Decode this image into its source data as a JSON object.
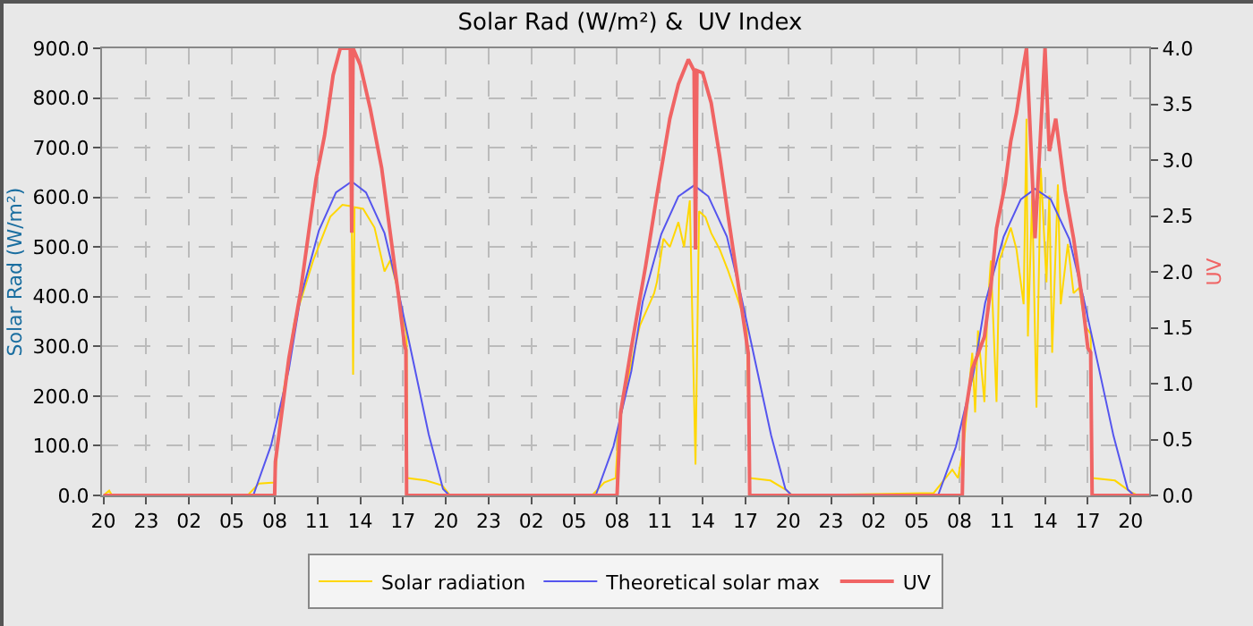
{
  "chart_data": {
    "type": "line",
    "title": "Solar Rad (W/m²) &  UV Index",
    "ylabel": "Solar Rad (W/m²)",
    "y2label": "UV",
    "xlim": [
      "--06-01T19:54",
      "--06-04T21:18"
    ],
    "xticks": [
      {
        "value": "--06-01T20:00",
        "label": "20"
      },
      {
        "value": "--06-01T23:00",
        "label": "23"
      },
      {
        "value": "--06-02T02:00",
        "label": "02"
      },
      {
        "value": "--06-02T05:00",
        "label": "05"
      },
      {
        "value": "--06-02T08:00",
        "label": "08"
      },
      {
        "value": "--06-02T11:00",
        "label": "11"
      },
      {
        "value": "--06-02T14:00",
        "label": "14"
      },
      {
        "value": "--06-02T17:00",
        "label": "17"
      },
      {
        "value": "--06-02T20:00",
        "label": "20"
      },
      {
        "value": "--06-02T23:00",
        "label": "23"
      },
      {
        "value": "--06-03T02:00",
        "label": "02"
      },
      {
        "value": "--06-03T05:00",
        "label": "05"
      },
      {
        "value": "--06-03T08:00",
        "label": "08"
      },
      {
        "value": "--06-03T11:00",
        "label": "11"
      },
      {
        "value": "--06-03T14:00",
        "label": "14"
      },
      {
        "value": "--06-03T17:00",
        "label": "17"
      },
      {
        "value": "--06-03T20:00",
        "label": "20"
      },
      {
        "value": "--06-03T23:00",
        "label": "23"
      },
      {
        "value": "--06-04T02:00",
        "label": "02"
      },
      {
        "value": "--06-04T05:00",
        "label": "05"
      },
      {
        "value": "--06-04T08:00",
        "label": "08"
      },
      {
        "value": "--06-04T11:00",
        "label": "11"
      },
      {
        "value": "--06-04T14:00",
        "label": "14"
      },
      {
        "value": "--06-04T17:00",
        "label": "17"
      },
      {
        "value": "--06-04T20:00",
        "label": "20"
      }
    ],
    "ylim": [
      0,
      900
    ],
    "yticks": [
      {
        "value": 0,
        "label": "0.0"
      },
      {
        "value": 100,
        "label": "100.0"
      },
      {
        "value": 200,
        "label": "200.0"
      },
      {
        "value": 300,
        "label": "300.0"
      },
      {
        "value": 400,
        "label": "400.0"
      },
      {
        "value": 500,
        "label": "500.0"
      },
      {
        "value": 600,
        "label": "600.0"
      },
      {
        "value": 700,
        "label": "700.0"
      },
      {
        "value": 800,
        "label": "800.0"
      },
      {
        "value": 900,
        "label": "900.0"
      }
    ],
    "y2lim": [
      0,
      4
    ],
    "y2ticks": [
      {
        "value": 0,
        "label": "0.0"
      },
      {
        "value": 0.5,
        "label": "0.5"
      },
      {
        "value": 1,
        "label": "1.0"
      },
      {
        "value": 1.5,
        "label": "1.5"
      },
      {
        "value": 2,
        "label": "2.0"
      },
      {
        "value": 2.5,
        "label": "2.5"
      },
      {
        "value": 3,
        "label": "3.0"
      },
      {
        "value": 3.5,
        "label": "3.5"
      },
      {
        "value": 4,
        "label": "4.0"
      }
    ],
    "grid": true,
    "legend": "bottom",
    "series": [
      {
        "name": "Solar radiation",
        "color": "#ffd700",
        "x": [
          "--06-01T20:00",
          "--06-01T20:24",
          "--06-01T20:36",
          "--06-01T20:48",
          "--06-02T06:06",
          "--06-02T06:54",
          "--06-02T08:00",
          "--06-02T08:24",
          "--06-02T09:24",
          "--06-02T10:42",
          "--06-02T11:54",
          "--06-02T12:45",
          "--06-02T13:24",
          "--06-02T13:30",
          "--06-02T13:36",
          "--06-02T14:12",
          "--06-02T15:00",
          "--06-02T15:42",
          "--06-02T16:06",
          "--06-02T16:42",
          "--06-02T17:06",
          "--06-02T17:15",
          "--06-02T17:18",
          "--06-02T18:36",
          "--06-02T19:45",
          "--06-02T20:18",
          "--06-03T06:15",
          "--06-03T07:06",
          "--06-03T07:54",
          "--06-03T08:06",
          "--06-03T08:45",
          "--06-03T09:36",
          "--06-03T10:36",
          "--06-03T10:48",
          "--06-03T11:15",
          "--06-03T11:42",
          "--06-03T12:18",
          "--06-03T12:42",
          "--06-03T13:06",
          "--06-03T13:30",
          "--06-03T13:45",
          "--06-03T14:12",
          "--06-03T14:36",
          "--06-03T15:12",
          "--06-03T15:48",
          "--06-03T16:42",
          "--06-03T17:06",
          "--06-03T17:18",
          "--06-03T18:45",
          "--06-03T19:48",
          "--06-03T20:18",
          "--06-04T06:12",
          "--06-04T07:30",
          "--06-04T07:54",
          "--06-04T08:18",
          "--06-04T08:54",
          "--06-04T09:06",
          "--06-04T09:18",
          "--06-04T09:45",
          "--06-04T09:57",
          "--06-04T10:12",
          "--06-04T10:36",
          "--06-04T10:48",
          "--06-04T11:12",
          "--06-04T11:36",
          "--06-04T12:00",
          "--06-04T12:30",
          "--06-04T12:42",
          "--06-04T12:48",
          "--06-04T13:06",
          "--06-04T13:24",
          "--06-04T13:42",
          "--06-04T14:06",
          "--06-04T14:18",
          "--06-04T14:30",
          "--06-04T14:54",
          "--06-04T15:06",
          "--06-04T15:36",
          "--06-04T16:00",
          "--06-04T16:24",
          "--06-04T16:48",
          "--06-04T17:12",
          "--06-04T17:18",
          "--06-04T18:54",
          "--06-04T20:00",
          "--06-04T20:30",
          "--06-04T21:18"
        ],
        "values": [
          0,
          10,
          0,
          0,
          0,
          24,
          26,
          168,
          352,
          473,
          561,
          585,
          582,
          243,
          580,
          577,
          539,
          451,
          473,
          407,
          342,
          325,
          35,
          30,
          20,
          0,
          0,
          26,
          35,
          134,
          233,
          342,
          407,
          430,
          517,
          500,
          550,
          500,
          594,
          62,
          572,
          560,
          528,
          495,
          451,
          375,
          332,
          35,
          30,
          12,
          0,
          5,
          52,
          35,
          101,
          287,
          167,
          332,
          188,
          364,
          473,
          188,
          473,
          506,
          539,
          495,
          385,
          758,
          320,
          604,
          177,
          659,
          429,
          604,
          287,
          626,
          385,
          506,
          407,
          418,
          342,
          325,
          35,
          30,
          7,
          0,
          0
        ]
      },
      {
        "name": "Theoretical solar max",
        "color": "#5555ee",
        "x": [
          "--06-01T20:00",
          "--06-02T06:30",
          "--06-02T07:45",
          "--06-02T09:00",
          "--06-02T09:48",
          "--06-02T11:06",
          "--06-02T12:18",
          "--06-02T13:24",
          "--06-02T14:24",
          "--06-02T15:42",
          "--06-02T16:42",
          "--06-02T17:45",
          "--06-02T18:48",
          "--06-02T19:48",
          "--06-02T20:15",
          "--06-03T06:30",
          "--06-03T07:45",
          "--06-03T09:00",
          "--06-03T09:48",
          "--06-03T11:06",
          "--06-03T12:18",
          "--06-03T13:24",
          "--06-03T14:24",
          "--06-03T15:42",
          "--06-03T16:42",
          "--06-03T17:45",
          "--06-03T18:48",
          "--06-03T19:48",
          "--06-03T20:15",
          "--06-04T06:30",
          "--06-04T07:45",
          "--06-04T09:00",
          "--06-04T09:48",
          "--06-04T11:06",
          "--06-04T12:18",
          "--06-04T13:18",
          "--06-04T14:24",
          "--06-04T15:42",
          "--06-04T16:42",
          "--06-04T17:45",
          "--06-04T18:48",
          "--06-04T19:48",
          "--06-04T20:15",
          "--06-04T21:18"
        ],
        "values": [
          0,
          0,
          101,
          254,
          396,
          533,
          610,
          632,
          610,
          528,
          407,
          265,
          123,
          13,
          0,
          0,
          99,
          250,
          390,
          526,
          602,
          624,
          602,
          521,
          401,
          261,
          121,
          13,
          0,
          0,
          98,
          248,
          387,
          521,
          596,
          617,
          596,
          516,
          397,
          259,
          120,
          12,
          0,
          0
        ]
      },
      {
        "name": "UV",
        "color": "#f06464",
        "axis": "y2",
        "x": [
          "--06-01T20:00",
          "--06-02T08:00",
          "--06-02T08:03",
          "--06-02T09:00",
          "--06-02T09:48",
          "--06-02T10:54",
          "--06-02T11:30",
          "--06-02T12:06",
          "--06-02T12:36",
          "--06-02T13:18",
          "--06-02T13:24",
          "--06-02T13:30",
          "--06-02T14:00",
          "--06-02T14:42",
          "--06-02T15:30",
          "--06-02T16:06",
          "--06-02T16:42",
          "--06-02T17:06",
          "--06-02T17:12",
          "--06-02T17:15",
          "--06-03T08:00",
          "--06-03T08:15",
          "--06-03T09:00",
          "--06-03T10:00",
          "--06-03T10:48",
          "--06-03T11:42",
          "--06-03T12:18",
          "--06-03T13:00",
          "--06-03T13:24",
          "--06-03T13:30",
          "--06-03T13:36",
          "--06-03T14:00",
          "--06-03T14:36",
          "--06-03T15:12",
          "--06-03T15:48",
          "--06-03T16:42",
          "--06-03T17:12",
          "--06-03T17:18",
          "--06-04T08:12",
          "--06-04T08:18",
          "--06-04T08:54",
          "--06-04T09:45",
          "--06-04T10:12",
          "--06-04T10:36",
          "--06-04T11:12",
          "--06-04T11:36",
          "--06-04T12:00",
          "--06-04T12:30",
          "--06-04T12:42",
          "--06-04T13:18",
          "--06-04T13:42",
          "--06-04T14:00",
          "--06-04T14:18",
          "--06-04T14:45",
          "--06-04T15:24",
          "--06-04T16:00",
          "--06-04T16:36",
          "--06-04T17:00",
          "--06-04T17:12",
          "--06-04T17:18",
          "--06-04T21:18"
        ],
        "values": [
          0,
          0,
          0.3,
          1.23,
          1.81,
          2.83,
          3.22,
          3.76,
          4.0,
          4.0,
          2.35,
          4.0,
          3.85,
          3.46,
          2.93,
          2.35,
          1.77,
          1.35,
          1.3,
          0,
          0,
          0.74,
          1.32,
          2.05,
          2.69,
          3.37,
          3.68,
          3.9,
          3.8,
          2.2,
          3.8,
          3.78,
          3.51,
          3.03,
          2.49,
          1.71,
          1.27,
          0,
          0,
          0.64,
          1.13,
          1.42,
          1.86,
          2.39,
          2.78,
          3.17,
          3.42,
          3.85,
          4.0,
          2.3,
          3.27,
          4.0,
          3.08,
          3.37,
          2.73,
          2.3,
          1.76,
          1.32,
          1.28,
          0,
          0
        ]
      }
    ]
  }
}
